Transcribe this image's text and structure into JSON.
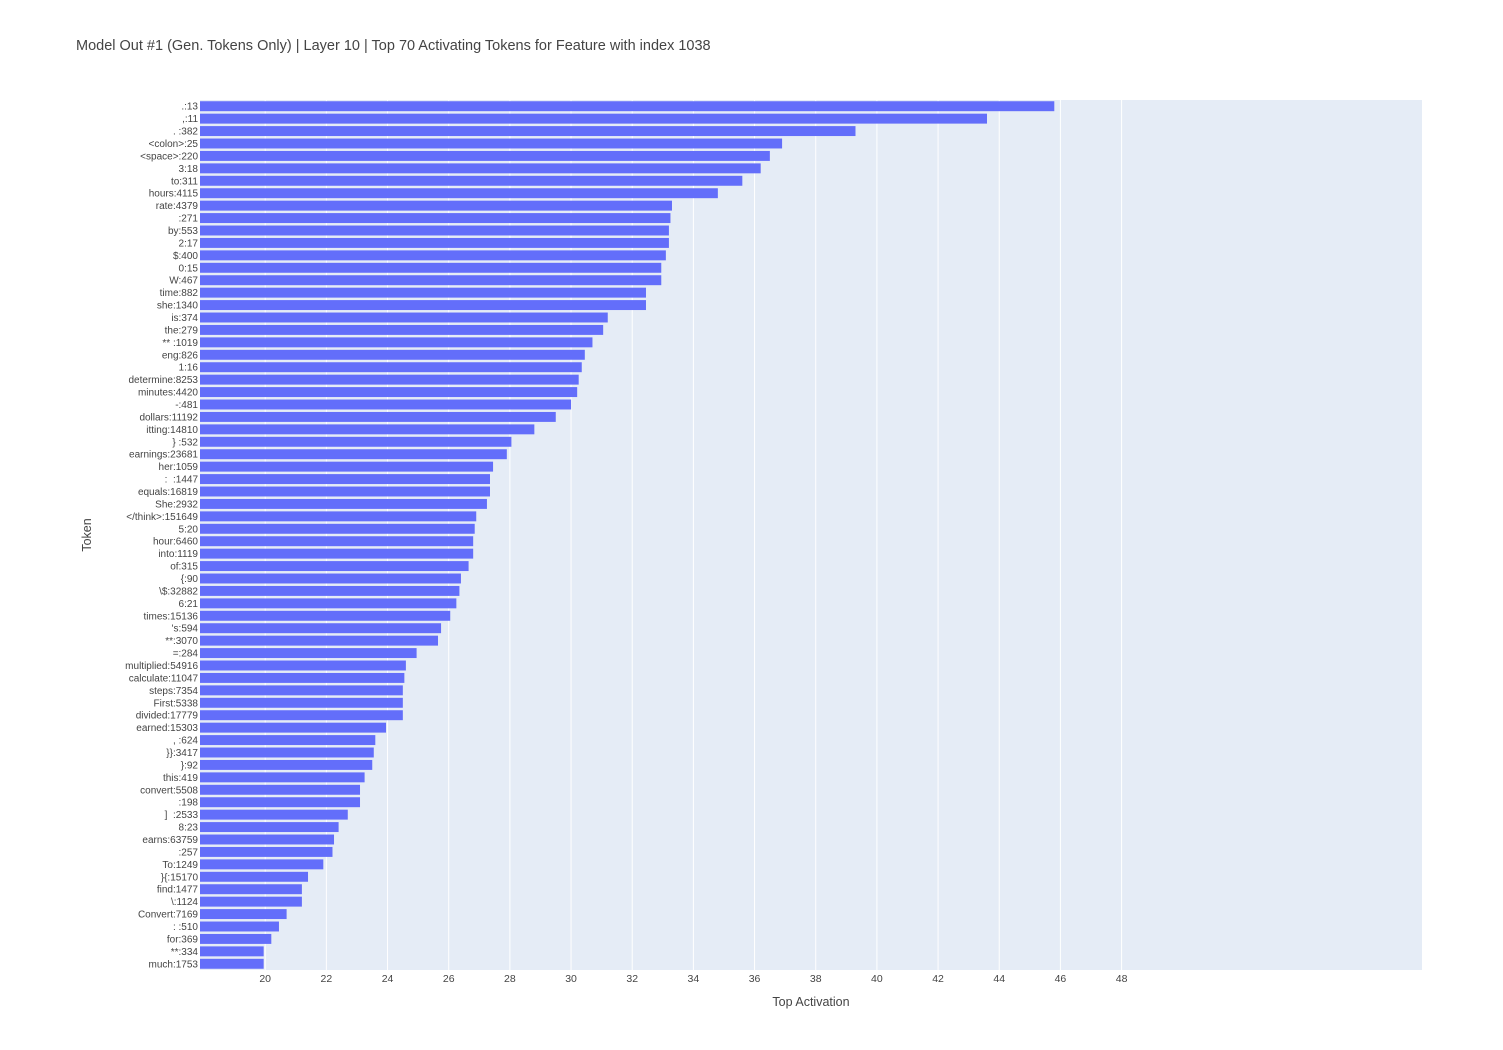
{
  "chart_data": {
    "type": "bar",
    "orientation": "horizontal",
    "title": "Model Out #1 (Gen. Tokens Only) | Layer 10 | Top 70 Activating Tokens for Feature with index 1038",
    "xlabel": "Top Activation",
    "ylabel": "Token",
    "x_tick_labels": [
      "20",
      "22",
      "24",
      "26",
      "28",
      "30",
      "32",
      "34",
      "36",
      "38",
      "40",
      "42",
      "44",
      "46",
      "48"
    ],
    "grid": true,
    "legend": "none",
    "colors": {
      "bar": "#636efa",
      "plot_background": "#e5ecf6",
      "grid": "#ffffff",
      "text": "#444444"
    },
    "categories": [
      ".:13",
      ",:11",
      ". :382",
      "<colon>:25",
      "<space>:220",
      "3:18",
      "to:311",
      "hours:4115",
      "rate:4379",
      ":271",
      "by:553",
      "2:17",
      "$:400",
      "0:15",
      "W:467",
      "time:882",
      "she:1340",
      "is:374",
      "the:279",
      "** :1019",
      "eng:826",
      "1:16",
      "determine:8253",
      "minutes:4420",
      "-:481",
      "dollars:11192",
      "itting:14810",
      "} :532",
      "earnings:23681",
      "her:1059",
      ":  :1447",
      "equals:16819",
      "She:2932",
      "</think>:151649",
      "5:20",
      "hour:6460",
      "into:1119",
      "of:315",
      "{:90",
      "\\$:32882",
      "6:21",
      "times:15136",
      "'s:594",
      "**:3070",
      "=:284",
      "multiplied:54916",
      "calculate:11047",
      "steps:7354",
      "First:5338",
      "divided:17779",
      "earned:15303",
      ", :624",
      "}}:3417",
      "}:92",
      "this:419",
      "convert:5508",
      ":198",
      "]  :2533",
      "8:23",
      "earns:63759",
      ":257",
      "To:1249",
      "}{:15170",
      "find:1477",
      "\\:1124",
      "Convert:7169",
      ": :510",
      "for:369",
      "**:334",
      "much:1753"
    ],
    "values": [
      45.8,
      43.6,
      39.3,
      36.9,
      36.5,
      36.2,
      35.6,
      34.8,
      33.3,
      33.25,
      33.2,
      33.2,
      33.1,
      32.95,
      32.95,
      32.45,
      32.45,
      31.2,
      31.05,
      30.7,
      30.45,
      30.35,
      30.25,
      30.2,
      30.0,
      29.5,
      28.8,
      28.05,
      27.9,
      27.45,
      27.35,
      27.35,
      27.25,
      26.9,
      26.85,
      26.8,
      26.8,
      26.65,
      26.4,
      26.35,
      26.25,
      26.05,
      25.75,
      25.65,
      24.95,
      24.6,
      24.55,
      24.5,
      24.5,
      24.5,
      23.95,
      23.6,
      23.55,
      23.5,
      23.25,
      23.1,
      23.1,
      22.7,
      22.4,
      22.25,
      22.2,
      21.9,
      21.4,
      21.2,
      21.2,
      20.7,
      20.45,
      20.2,
      19.95,
      19.95
    ]
  }
}
